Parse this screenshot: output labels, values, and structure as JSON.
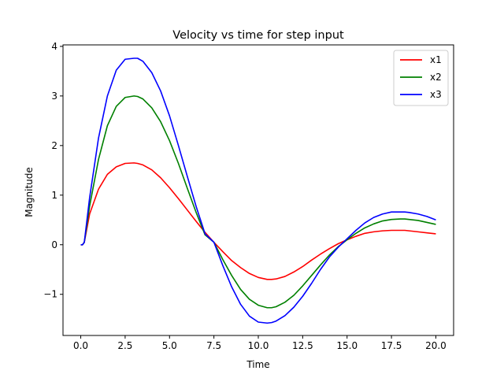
{
  "chart_data": {
    "type": "line",
    "title": "Velocity vs time for step input",
    "xlabel": "Time",
    "ylabel": "Magnitude",
    "xlim": [
      -1.0,
      21.0
    ],
    "ylim": [
      -1.83,
      4.03
    ],
    "xticks": [
      0,
      2.5,
      5,
      7.5,
      10,
      12.5,
      15,
      17.5,
      20
    ],
    "xtick_labels": [
      "0.0",
      "2.5",
      "5.0",
      "7.5",
      "10.0",
      "12.5",
      "15.0",
      "17.5",
      "20.0"
    ],
    "yticks": [
      -1,
      0,
      1,
      2,
      3,
      4
    ],
    "ytick_labels": [
      "−1",
      "0",
      "1",
      "2",
      "3",
      "4"
    ],
    "grid": false,
    "legend_position": "top-right",
    "x": [
      0,
      0.1,
      0.2,
      0.5,
      1.0,
      1.5,
      2.0,
      2.5,
      3.0,
      3.2,
      3.5,
      4.0,
      4.5,
      5.0,
      5.5,
      6.0,
      6.5,
      7.0,
      7.5,
      8.0,
      8.5,
      9.0,
      9.5,
      10.0,
      10.5,
      10.75,
      11.0,
      11.5,
      12.0,
      12.5,
      13.0,
      13.5,
      14.0,
      14.5,
      15.0,
      15.5,
      16.0,
      16.5,
      17.0,
      17.5,
      18.0,
      18.25,
      18.5,
      19.0,
      19.5,
      20.0
    ],
    "series": [
      {
        "name": "x1",
        "color": "#ff0000",
        "values": [
          0,
          0,
          0.05,
          0.62,
          1.12,
          1.42,
          1.57,
          1.64,
          1.65,
          1.64,
          1.61,
          1.51,
          1.35,
          1.15,
          0.93,
          0.7,
          0.47,
          0.25,
          0.05,
          -0.14,
          -0.32,
          -0.46,
          -0.58,
          -0.66,
          -0.7,
          -0.7,
          -0.69,
          -0.64,
          -0.55,
          -0.44,
          -0.31,
          -0.19,
          -0.08,
          0.02,
          0.1,
          0.17,
          0.23,
          0.26,
          0.28,
          0.29,
          0.29,
          0.29,
          0.28,
          0.26,
          0.24,
          0.22
        ]
      },
      {
        "name": "x2",
        "color": "#008000",
        "values": [
          0,
          0,
          0.05,
          0.78,
          1.72,
          2.4,
          2.79,
          2.97,
          3.0,
          2.99,
          2.94,
          2.76,
          2.48,
          2.1,
          1.64,
          1.14,
          0.65,
          0.2,
          0.05,
          -0.3,
          -0.62,
          -0.9,
          -1.1,
          -1.22,
          -1.27,
          -1.27,
          -1.25,
          -1.16,
          -1.02,
          -0.83,
          -0.62,
          -0.41,
          -0.21,
          -0.04,
          0.1,
          0.23,
          0.34,
          0.42,
          0.48,
          0.51,
          0.52,
          0.52,
          0.51,
          0.49,
          0.45,
          0.41
        ]
      },
      {
        "name": "x3",
        "color": "#0000ff",
        "values": [
          0,
          0,
          0.05,
          0.95,
          2.15,
          3.0,
          3.52,
          3.74,
          3.76,
          3.76,
          3.7,
          3.47,
          3.1,
          2.6,
          2.0,
          1.38,
          0.77,
          0.22,
          0.05,
          -0.42,
          -0.85,
          -1.2,
          -1.44,
          -1.56,
          -1.58,
          -1.57,
          -1.54,
          -1.43,
          -1.26,
          -1.04,
          -0.78,
          -0.5,
          -0.25,
          -0.05,
          0.12,
          0.29,
          0.44,
          0.55,
          0.62,
          0.66,
          0.66,
          0.66,
          0.65,
          0.62,
          0.57,
          0.5
        ]
      }
    ]
  }
}
